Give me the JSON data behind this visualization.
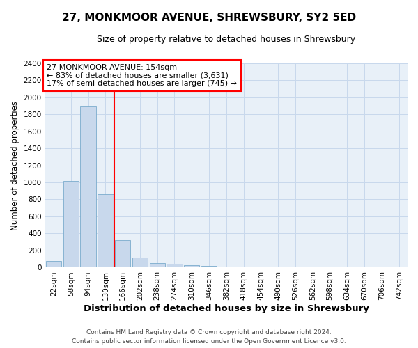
{
  "title": "27, MONKMOOR AVENUE, SHREWSBURY, SY2 5ED",
  "subtitle": "Size of property relative to detached houses in Shrewsbury",
  "xlabel": "Distribution of detached houses by size in Shrewsbury",
  "ylabel": "Number of detached properties",
  "footer_line1": "Contains HM Land Registry data © Crown copyright and database right 2024.",
  "footer_line2": "Contains public sector information licensed under the Open Government Licence v3.0.",
  "bar_labels": [
    "22sqm",
    "58sqm",
    "94sqm",
    "130sqm",
    "166sqm",
    "202sqm",
    "238sqm",
    "274sqm",
    "310sqm",
    "346sqm",
    "382sqm",
    "418sqm",
    "454sqm",
    "490sqm",
    "526sqm",
    "562sqm",
    "598sqm",
    "634sqm",
    "670sqm",
    "706sqm",
    "742sqm"
  ],
  "bar_values": [
    80,
    1020,
    1890,
    860,
    320,
    115,
    55,
    45,
    30,
    20,
    10,
    0,
    0,
    0,
    0,
    0,
    0,
    0,
    0,
    0,
    0
  ],
  "bar_color": "#c8d8ec",
  "bar_edge_color": "#7aabcc",
  "annotation_text_line1": "27 MONKMOOR AVENUE: 154sqm",
  "annotation_text_line2": "← 83% of detached houses are smaller (3,631)",
  "annotation_text_line3": "17% of semi-detached houses are larger (745) →",
  "annotation_box_facecolor": "white",
  "annotation_box_edgecolor": "red",
  "red_line_color": "red",
  "red_line_x": 3.5,
  "ylim": [
    0,
    2400
  ],
  "yticks": [
    0,
    200,
    400,
    600,
    800,
    1000,
    1200,
    1400,
    1600,
    1800,
    2000,
    2200,
    2400
  ],
  "grid_color": "#c8d8ec",
  "background_color": "#e8f0f8",
  "title_fontsize": 11,
  "subtitle_fontsize": 9,
  "xlabel_fontsize": 9.5,
  "ylabel_fontsize": 8.5,
  "tick_fontsize": 7.5,
  "annotation_fontsize": 8,
  "footer_fontsize": 6.5
}
